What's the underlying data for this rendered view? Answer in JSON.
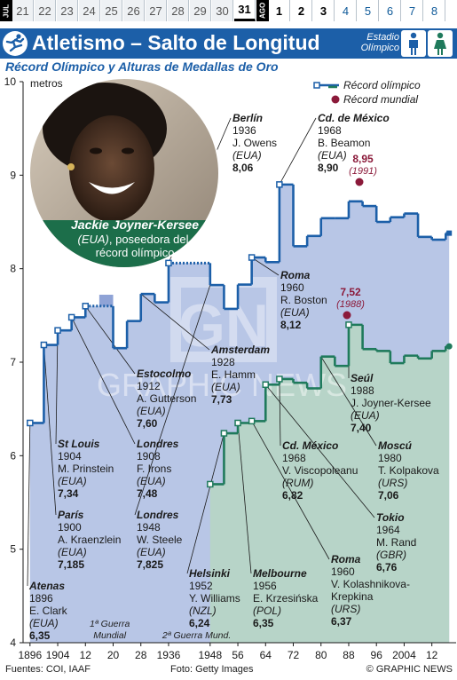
{
  "calendar": {
    "month_jul": "JUL",
    "month_aug": "AGO",
    "jul_days": [
      "21",
      "22",
      "23",
      "24",
      "25",
      "26",
      "27",
      "28",
      "29",
      "30",
      "31"
    ],
    "aug_days": [
      "1",
      "2",
      "3",
      "4",
      "5",
      "6",
      "7",
      "8"
    ],
    "today": "31",
    "bold_aug": [
      "1",
      "2",
      "3"
    ]
  },
  "header": {
    "title": "Atletismo – Salto de Longitud",
    "venue_line1": "Estadio",
    "venue_line2": "Olímpico",
    "icons": [
      "long-jump-pictogram",
      "male-athlete-icon",
      "female-athlete-icon"
    ]
  },
  "subtitle": "Récord Olímpico y Alturas de Medallas de Oro",
  "colors": {
    "brand_blue": "#1c5fa8",
    "men": "#1c5fa8",
    "women": "#1f7a5c",
    "world_record": "#8b1a3a",
    "men_area": "#b8c6e6",
    "women_area": "#b7d4c8",
    "war_band": "#8fa3d6"
  },
  "photo": {
    "caption_name": "Jackie Joyner-Kersee",
    "caption_country": "(EUA)",
    "caption_text1": ", poseedora del",
    "caption_text2": "récord olímpico",
    "credit_watermark": "Amsterdam"
  },
  "chart_data": {
    "type": "line",
    "ylabel": "metros",
    "ylim": [
      4,
      10
    ],
    "yticks": [
      "4",
      "5",
      "6",
      "7",
      "8",
      "9",
      "10"
    ],
    "xlim": [
      1894,
      2019
    ],
    "xtick_labels": [
      "1896",
      "1904",
      "12",
      "20",
      "28",
      "1936",
      "1948",
      "56",
      "64",
      "72",
      "80",
      "88",
      "96",
      "2004",
      "12"
    ],
    "xtick_years": [
      1896,
      1904,
      1912,
      1920,
      1928,
      1936,
      1948,
      1956,
      1964,
      1972,
      1980,
      1988,
      1996,
      2004,
      2012
    ],
    "war_bands": [
      {
        "from": 1916,
        "to": 1920,
        "label1": "1ª Guerra",
        "label2": "Mundial"
      },
      {
        "from": 1940,
        "to": 1948,
        "label1": "2ª Guerra Mund.",
        "label2": ""
      }
    ],
    "series": [
      {
        "name": "Récord olímpico",
        "points": [
          [
            1896,
            6.35
          ],
          [
            1900,
            7.185
          ],
          [
            1904,
            7.34
          ],
          [
            1908,
            7.48
          ],
          [
            1912,
            7.6
          ],
          [
            1920,
            7.15
          ],
          [
            1924,
            7.44
          ],
          [
            1928,
            7.73
          ],
          [
            1932,
            7.64
          ],
          [
            1936,
            8.06
          ],
          [
            1948,
            7.825
          ],
          [
            1952,
            7.57
          ],
          [
            1956,
            7.83
          ],
          [
            1960,
            8.12
          ],
          [
            1964,
            8.07
          ],
          [
            1968,
            8.9
          ],
          [
            1972,
            8.24
          ],
          [
            1976,
            8.35
          ],
          [
            1980,
            8.54
          ],
          [
            1984,
            8.54
          ],
          [
            1988,
            8.72
          ],
          [
            1992,
            8.67
          ],
          [
            1996,
            8.5
          ],
          [
            2000,
            8.55
          ],
          [
            2004,
            8.59
          ],
          [
            2008,
            8.34
          ],
          [
            2012,
            8.31
          ],
          [
            2016,
            8.38
          ]
        ],
        "record_until": 1920,
        "record_dotted": [
          [
            1912,
            1920
          ],
          [
            1936,
            1948
          ]
        ]
      },
      {
        "name": "Mujeres",
        "points": [
          [
            1948,
            5.695
          ],
          [
            1952,
            6.24
          ],
          [
            1956,
            6.35
          ],
          [
            1960,
            6.37
          ],
          [
            1964,
            6.76
          ],
          [
            1968,
            6.82
          ],
          [
            1972,
            6.78
          ],
          [
            1976,
            6.72
          ],
          [
            1980,
            7.06
          ],
          [
            1984,
            6.96
          ],
          [
            1988,
            7.4
          ],
          [
            1992,
            7.14
          ],
          [
            1996,
            7.12
          ],
          [
            2000,
            6.99
          ],
          [
            2004,
            7.07
          ],
          [
            2008,
            7.04
          ],
          [
            2012,
            7.12
          ],
          [
            2016,
            7.17
          ]
        ],
        "record_until": 1988
      }
    ],
    "world_records": [
      {
        "year": 1991,
        "value": 8.95,
        "label": "8,95",
        "year_label": "(1991)"
      },
      {
        "year": 1988,
        "value": 7.52,
        "label": "7,52",
        "year_label": "(1988)"
      }
    ],
    "legend": {
      "olympic": "Récord olímpico",
      "world": "Récord mundial",
      "position": "top-right"
    },
    "annotations": [
      {
        "city": "Atenas",
        "year": "1896",
        "athlete": "E. Clark",
        "country": "(EUA)",
        "mark": "6,35"
      },
      {
        "city": "París",
        "year": "1900",
        "athlete": "A. Kraenzlein",
        "country": "(EUA)",
        "mark": "7,185"
      },
      {
        "city": "St Louis",
        "year": "1904",
        "athlete": "M. Prinstein",
        "country": "(EUA)",
        "mark": "7,34"
      },
      {
        "city": "Londres",
        "year": "1908",
        "athlete": "F. Irons",
        "country": "(EUA)",
        "mark": "7,48"
      },
      {
        "city": "Estocolmo",
        "year": "1912",
        "athlete": "A. Gutterson",
        "country": "(EUA)",
        "mark": "7,60"
      },
      {
        "city": "Amsterdam",
        "year": "1928",
        "athlete": "E. Hamm",
        "country": "(EUA)",
        "mark": "7,73"
      },
      {
        "city": "Berlín",
        "year": "1936",
        "athlete": "J. Owens",
        "country": "(EUA)",
        "mark": "8,06"
      },
      {
        "city": "Londres",
        "year": "1948",
        "athlete": "W. Steele",
        "country": "(EUA)",
        "mark": "7,825"
      },
      {
        "city": "Roma",
        "year": "1960",
        "athlete": "R. Boston",
        "country": "(EUA)",
        "mark": "8,12"
      },
      {
        "city": "Cd. de México",
        "year": "1968",
        "athlete": "B. Beamon",
        "country": "(EUA)",
        "mark": "8,90"
      },
      {
        "city": "Helsinki",
        "year": "1952",
        "athlete": "Y. Williams",
        "country": "(NZL)",
        "mark": "6,24"
      },
      {
        "city": "Melbourne",
        "year": "1956",
        "athlete": "E. Krzesińska",
        "country": "(POL)",
        "mark": "6,35"
      },
      {
        "city": "Roma",
        "year": "1960",
        "athlete": "V. Kolashnikova-",
        "athlete2": "Krepkina",
        "country": "(URS)",
        "mark": "6,37"
      },
      {
        "city": "Tokio",
        "year": "1964",
        "athlete": "M. Rand",
        "country": "(GBR)",
        "mark": "6,76"
      },
      {
        "city": "Cd. México",
        "year": "1968",
        "athlete": "V. Viscopoleanu",
        "country": "(RUM)",
        "mark": "6,82"
      },
      {
        "city": "Moscú",
        "year": "1980",
        "athlete": "T. Kolpakova",
        "country": "(URS)",
        "mark": "7,06"
      },
      {
        "city": "Seúl",
        "year": "1988",
        "athlete": "J. Joyner-Kersee",
        "country": "(EUA)",
        "mark": "7,40"
      }
    ]
  },
  "watermark": {
    "logo_text": "GN",
    "brand": "GRAPHIC NEWS"
  },
  "footer": {
    "sources": "Fuentes: COI, IAAF",
    "photo": "Foto: Getty Images",
    "copyright": "© GRAPHIC NEWS"
  }
}
